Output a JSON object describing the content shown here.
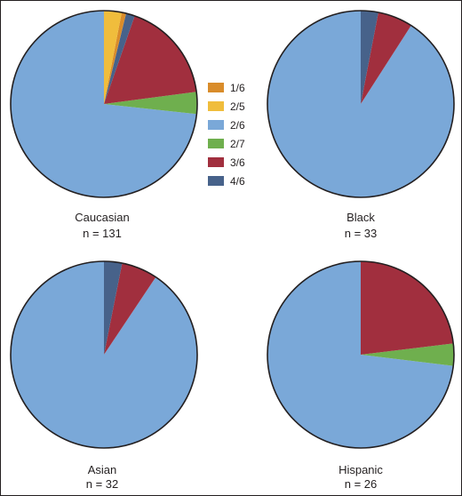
{
  "chart_data": [
    {
      "type": "pie",
      "title": "Caucasian",
      "subtitle": "n = 131",
      "slices": [
        {
          "category": "1/6",
          "value": 1
        },
        {
          "category": "2/5",
          "value": 4
        },
        {
          "category": "2/6",
          "value": 96
        },
        {
          "category": "2/7",
          "value": 5
        },
        {
          "category": "3/6",
          "value": 23
        },
        {
          "category": "4/6",
          "value": 2
        }
      ]
    },
    {
      "type": "pie",
      "title": "Black",
      "subtitle": "n = 33",
      "slices": [
        {
          "category": "2/6",
          "value": 30
        },
        {
          "category": "3/6",
          "value": 2
        },
        {
          "category": "4/6",
          "value": 1
        }
      ]
    },
    {
      "type": "pie",
      "title": "Asian",
      "subtitle": "n = 32",
      "slices": [
        {
          "category": "2/6",
          "value": 29
        },
        {
          "category": "3/6",
          "value": 2
        },
        {
          "category": "4/6",
          "value": 1
        }
      ]
    },
    {
      "type": "pie",
      "title": "Hispanic",
      "subtitle": "n = 26",
      "slices": [
        {
          "category": "2/6",
          "value": 19
        },
        {
          "category": "2/7",
          "value": 1
        },
        {
          "category": "3/6",
          "value": 6
        }
      ]
    }
  ],
  "legend": {
    "placement": "center",
    "items": [
      {
        "label": "1/6",
        "color": "#d98c2a"
      },
      {
        "label": "2/5",
        "color": "#f0bd3c"
      },
      {
        "label": "2/6",
        "color": "#7aa8d8"
      },
      {
        "label": "2/7",
        "color": "#6faf4e"
      },
      {
        "label": "3/6",
        "color": "#a12f3e"
      },
      {
        "label": "4/6",
        "color": "#47628a"
      }
    ]
  }
}
